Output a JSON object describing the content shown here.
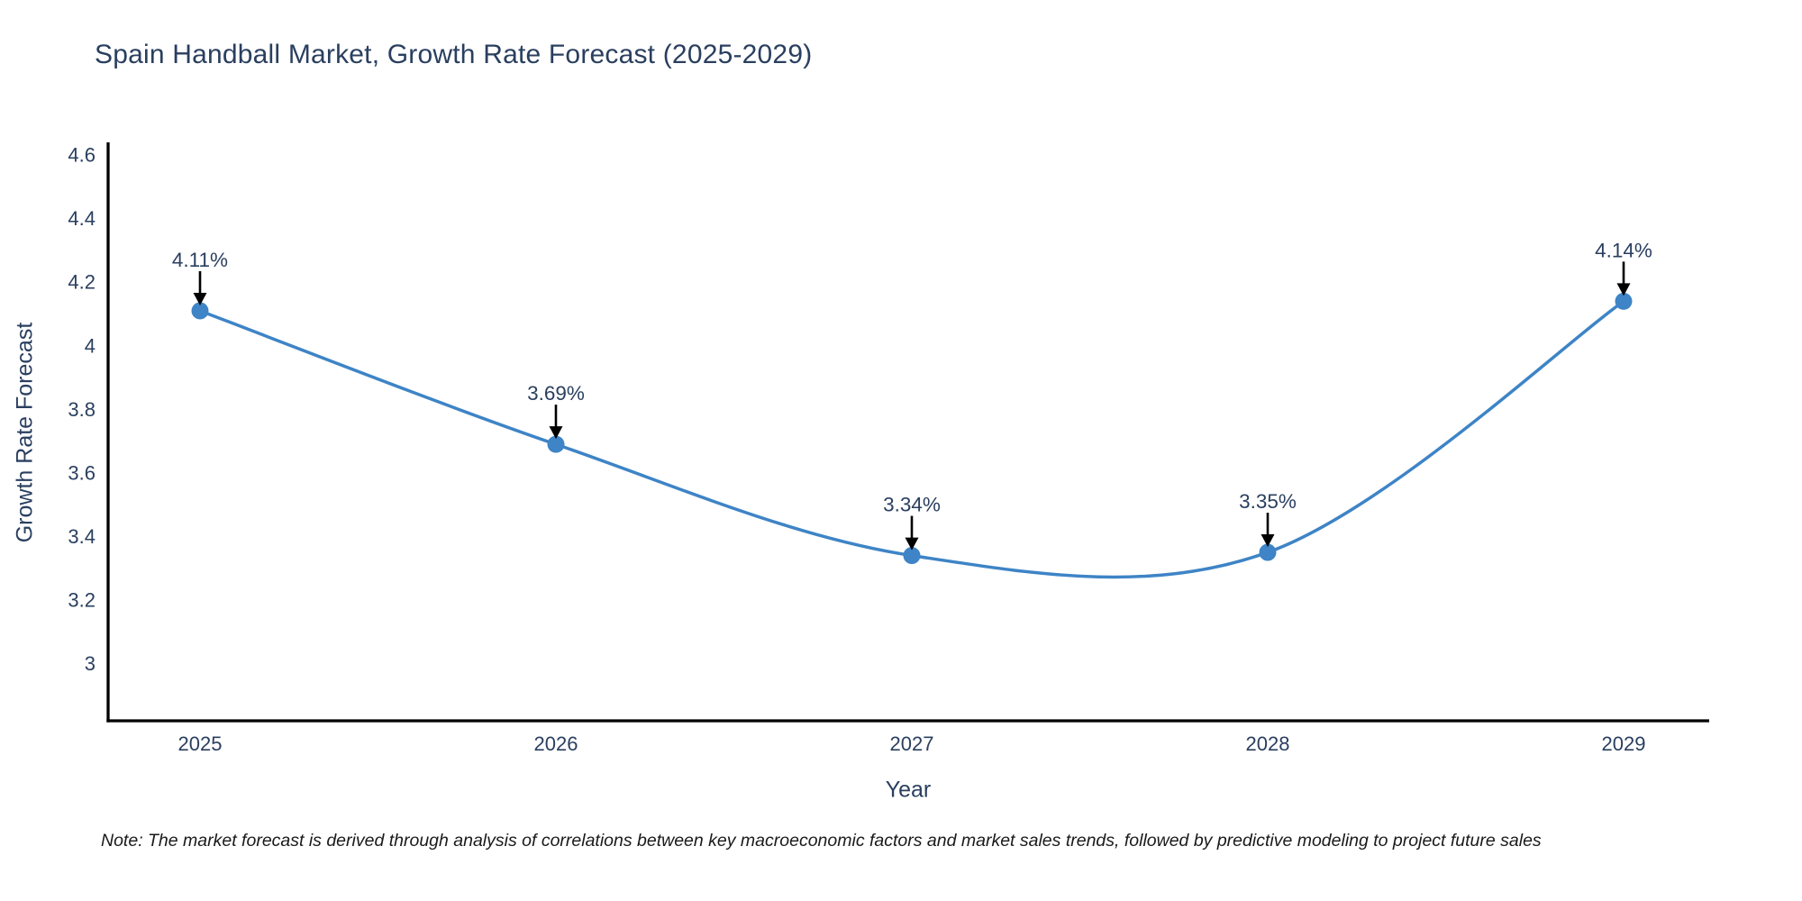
{
  "page": {
    "background": "#ffffff"
  },
  "note": "Note: The market forecast is derived through analysis of correlations between key macroeconomic factors and market sales trends, followed by predictive modeling to project future sales",
  "chart_data": {
    "type": "line",
    "title": "Spain Handball Market, Growth Rate Forecast (2025-2029)",
    "xlabel": "Year",
    "ylabel": "Growth Rate Forecast",
    "categories": [
      "2025",
      "2026",
      "2027",
      "2028",
      "2029"
    ],
    "series": [
      {
        "name": "Growth Rate Forecast",
        "values": [
          4.11,
          3.69,
          3.34,
          3.35,
          4.14
        ],
        "point_labels": [
          "4.11%",
          "3.69%",
          "3.34%",
          "3.35%",
          "4.14%"
        ]
      }
    ],
    "line_shape": "spline",
    "markers": true,
    "grid": false,
    "legend": "none",
    "ylim": [
      2.82,
      4.64
    ],
    "yticks": [
      3,
      3.2,
      3.4,
      3.6,
      3.8,
      4,
      4.2,
      4.4,
      4.6
    ],
    "ytick_labels": [
      "3",
      "3.2",
      "3.4",
      "3.6",
      "3.8",
      "4",
      "4.2",
      "4.4",
      "4.6"
    ],
    "annotation_arrow": "down-to-point",
    "colors": {
      "line": "#3e84c6",
      "marker": "#3e84c6",
      "text": "#2a3f5f",
      "axis_line": "#000000",
      "annotation_arrow": "#000000",
      "note_text": "#1a1a1a"
    }
  }
}
